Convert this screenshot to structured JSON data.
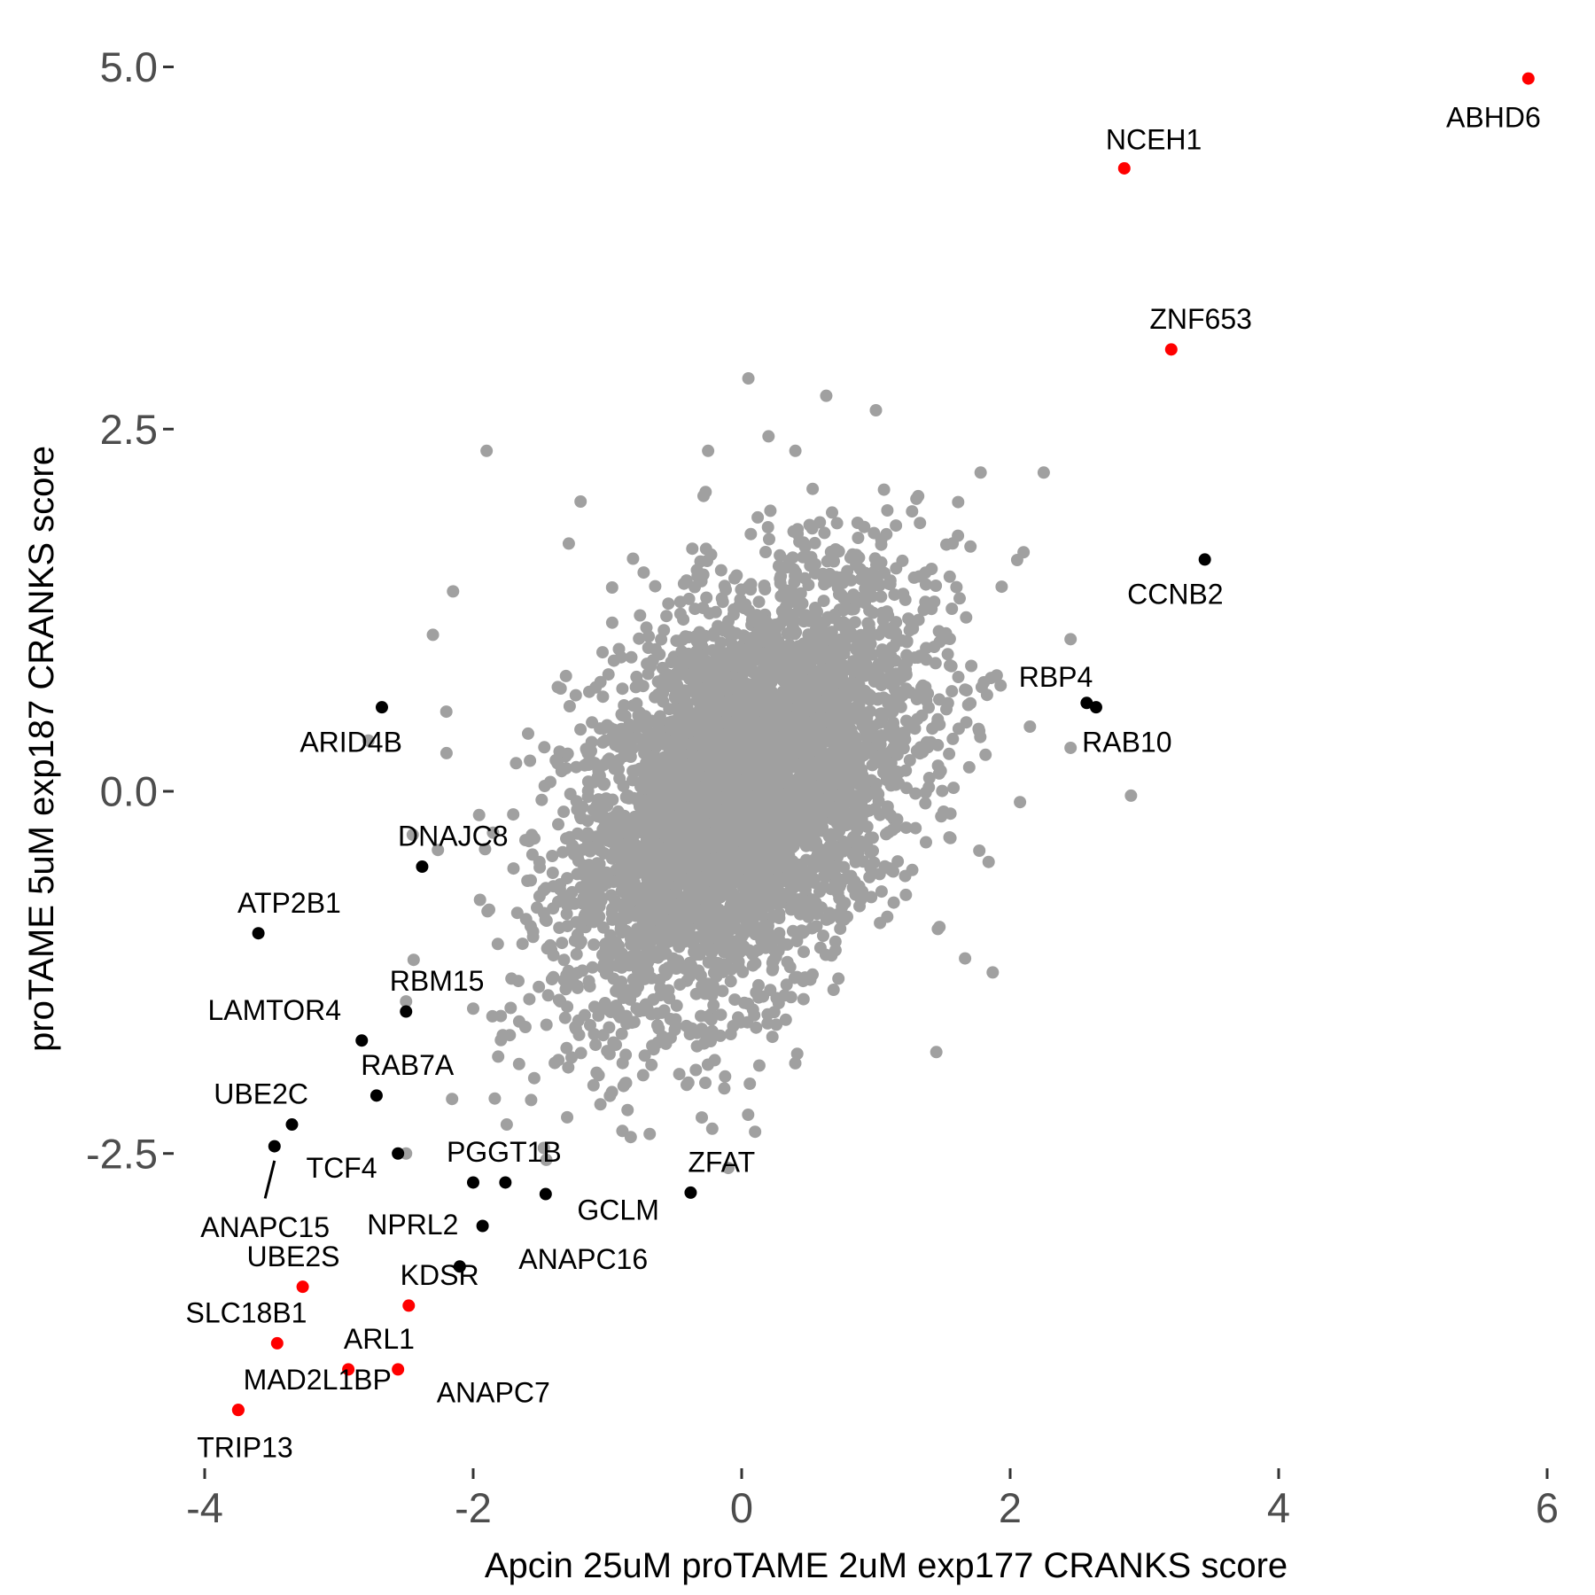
{
  "chart_data": {
    "type": "scatter",
    "title": "",
    "xlabel": "Apcin 25uM proTAME 2uM exp177 CRANKS score",
    "ylabel": "proTAME 5uM exp187 CRANKS score",
    "xlim": [
      -4.0,
      6.0
    ],
    "ylim": [
      -4.7,
      5.2
    ],
    "xticks": [
      "-4",
      "-2",
      "0",
      "2",
      "4",
      "6"
    ],
    "yticks": [
      "-2.5",
      "0.0",
      "2.5",
      "5.0"
    ],
    "grid": false,
    "legend": "none",
    "colors": {
      "background": "#a0a0a0",
      "highlight_red": "#ff0000",
      "highlight_black": "#000000"
    },
    "background_cloud": {
      "description": "thousands of grey genes centered near the origin",
      "center": [
        0.0,
        0.0
      ],
      "sd": [
        0.65,
        0.75
      ]
    },
    "background_outliers": [
      [
        -1.9,
        2.35
      ],
      [
        0.05,
        2.85
      ],
      [
        0.63,
        2.73
      ],
      [
        1.0,
        2.63
      ],
      [
        -0.25,
        2.35
      ],
      [
        0.2,
        2.45
      ],
      [
        0.4,
        2.35
      ],
      [
        -0.3,
        1.45
      ],
      [
        -2.15,
        1.38
      ],
      [
        -2.3,
        1.08
      ],
      [
        -1.2,
        2.0
      ],
      [
        -2.2,
        0.55
      ],
      [
        1.78,
        2.2
      ],
      [
        2.25,
        2.2
      ],
      [
        2.1,
        1.65
      ],
      [
        2.45,
        1.05
      ],
      [
        1.9,
        0.8
      ],
      [
        2.9,
        -0.03
      ],
      [
        1.87,
        -1.25
      ],
      [
        1.45,
        -1.8
      ],
      [
        0.1,
        -2.35
      ],
      [
        -0.1,
        -2.6
      ],
      [
        -2.0,
        -1.5
      ],
      [
        -1.75,
        -2.3
      ],
      [
        -2.5,
        -2.5
      ],
      [
        -2.5,
        -1.45
      ],
      [
        -2.45,
        -0.3
      ],
      [
        -2.78,
        0.35
      ],
      [
        2.45,
        0.3
      ],
      [
        -1.3,
        -2.25
      ],
      [
        -0.85,
        -2.2
      ]
    ],
    "series": [
      {
        "color": "#ff0000",
        "points": [
          {
            "label": "ABHD6",
            "x": 5.86,
            "y": 4.92
          },
          {
            "label": "NCEH1",
            "x": 2.85,
            "y": 4.3
          },
          {
            "label": "ZNF653",
            "x": 3.2,
            "y": 3.05
          },
          {
            "label": "UBE2S",
            "x": -3.27,
            "y": -3.42
          },
          {
            "label": "KDSR",
            "x": -2.48,
            "y": -3.55
          },
          {
            "label": "SLC18B1",
            "x": -3.46,
            "y": -3.81
          },
          {
            "label": "ARL1",
            "x": -2.93,
            "y": -3.99
          },
          {
            "label": "ANAPC7",
            "x": -2.56,
            "y": -3.99
          },
          {
            "label": "MAD2L1BP",
            "x": -3.75,
            "y": -4.27
          },
          {
            "label": "TRIP13",
            "x": -3.75,
            "y": -4.27
          }
        ]
      },
      {
        "color": "#000000",
        "points": [
          {
            "label": "CCNB2",
            "x": 3.45,
            "y": 1.6
          },
          {
            "label": "RBP4",
            "x": 2.57,
            "y": 0.61
          },
          {
            "label": "RAB10",
            "x": 2.64,
            "y": 0.58
          },
          {
            "label": "ARID4B",
            "x": -2.68,
            "y": 0.58
          },
          {
            "label": "DNAJC8",
            "x": -2.38,
            "y": -0.52
          },
          {
            "label": "ATP2B1",
            "x": -3.6,
            "y": -0.98
          },
          {
            "label": "RBM15",
            "x": -2.5,
            "y": -1.52
          },
          {
            "label": "LAMTOR4",
            "x": -2.83,
            "y": -1.72
          },
          {
            "label": "RAB7A",
            "x": -2.72,
            "y": -2.1
          },
          {
            "label": "UBE2C",
            "x": -3.35,
            "y": -2.3
          },
          {
            "label": "ANAPC15",
            "x": -3.48,
            "y": -2.45
          },
          {
            "label": "TCF4",
            "x": -2.56,
            "y": -2.5
          },
          {
            "label": "PGGT1B",
            "x": -2.0,
            "y": -2.7
          },
          {
            "label": "NPRL2",
            "x": -1.76,
            "y": -2.7
          },
          {
            "label": "GCLM",
            "x": -1.46,
            "y": -2.78
          },
          {
            "label": "ZFAT",
            "x": -0.38,
            "y": -2.77
          },
          {
            "label": "ANAPC16",
            "x": -1.93,
            "y": -3.0
          },
          {
            "label": "UNLABELED_DOT",
            "x": -2.1,
            "y": -3.28
          }
        ]
      }
    ],
    "labels": [
      {
        "text": "ABHD6",
        "x": 5.6,
        "y": 4.65
      },
      {
        "text": "NCEH1",
        "x": 3.07,
        "y": 4.5
      },
      {
        "text": "ZNF653",
        "x": 3.42,
        "y": 3.26
      },
      {
        "text": "CCNB2",
        "x": 3.23,
        "y": 1.36
      },
      {
        "text": "RBP4",
        "x": 2.34,
        "y": 0.79
      },
      {
        "text": "RAB10",
        "x": 2.87,
        "y": 0.34
      },
      {
        "text": "ARID4B",
        "x": -2.91,
        "y": 0.34
      },
      {
        "text": "DNAJC8",
        "x": -2.15,
        "y": -0.31
      },
      {
        "text": "ATP2B1",
        "x": -3.37,
        "y": -0.77
      },
      {
        "text": "RBM15",
        "x": -2.27,
        "y": -1.31
      },
      {
        "text": "LAMTOR4",
        "x": -3.48,
        "y": -1.51
      },
      {
        "text": "RAB7A",
        "x": -2.49,
        "y": -1.89
      },
      {
        "text": "UBE2C",
        "x": -3.58,
        "y": -2.09
      },
      {
        "text": "TCF4",
        "x": -2.98,
        "y": -2.6
      },
      {
        "text": "PGGT1B",
        "x": -1.77,
        "y": -2.49
      },
      {
        "text": "ZFAT",
        "x": -0.15,
        "y": -2.56
      },
      {
        "text": "NPRL2",
        "x": -2.45,
        "y": -2.99
      },
      {
        "text": "GCLM",
        "x": -0.92,
        "y": -2.89
      },
      {
        "text": "ANAPC15",
        "x": -3.55,
        "y": -3.01
      },
      {
        "text": "ANAPC16",
        "x": -1.18,
        "y": -3.23
      },
      {
        "text": "UBE2S",
        "x": -3.34,
        "y": -3.21
      },
      {
        "text": "KDSR",
        "x": -2.25,
        "y": -3.34
      },
      {
        "text": "SLC18B1",
        "x": -3.69,
        "y": -3.6
      },
      {
        "text": "ARL1",
        "x": -2.7,
        "y": -3.78
      },
      {
        "text": "ANAPC7",
        "x": -1.85,
        "y": -4.15
      },
      {
        "text": "MAD2L1BP",
        "x": -3.16,
        "y": -4.06
      },
      {
        "text": "TRIP13",
        "x": -3.7,
        "y": -4.53
      }
    ],
    "leader_lines": [
      {
        "label": "ANAPC15",
        "from": [
          -3.48,
          -2.55
        ],
        "to": [
          -3.55,
          -2.81
        ]
      }
    ]
  }
}
